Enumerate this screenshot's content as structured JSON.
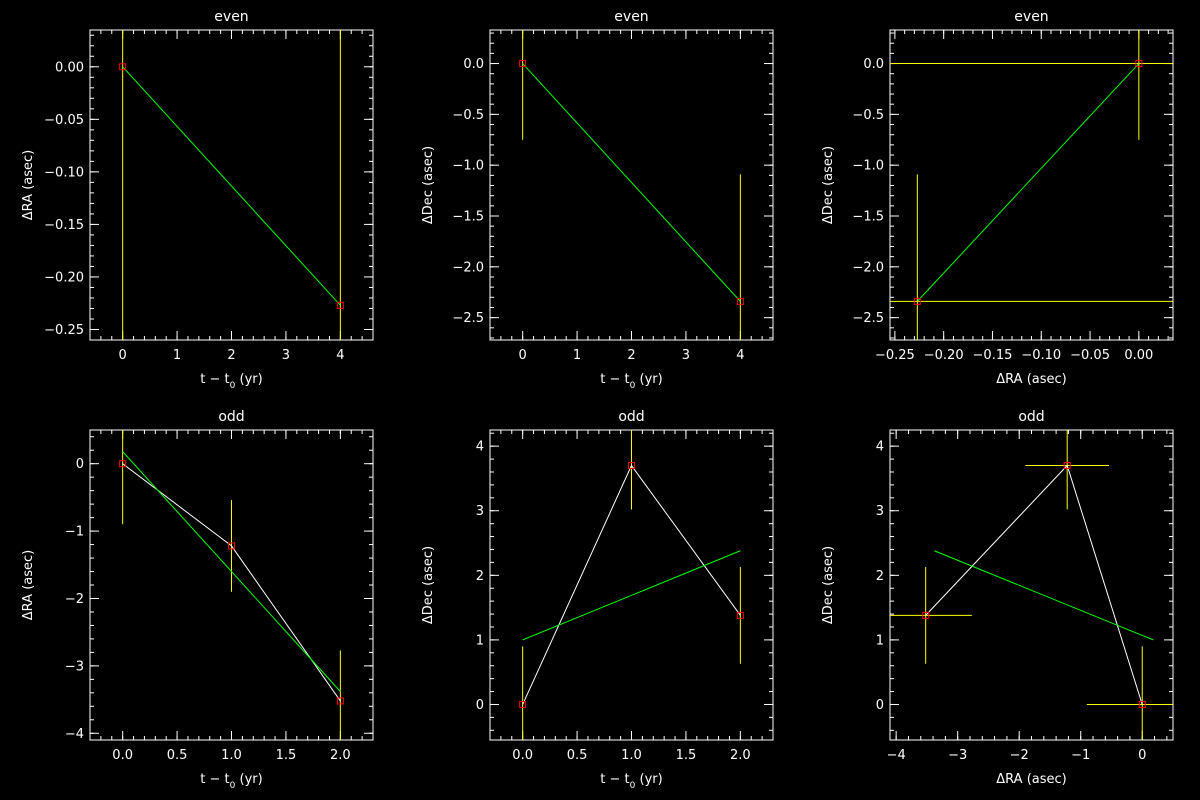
{
  "colors": {
    "background": "#000000",
    "axes": "#ffffff",
    "data_line": "#ffffff",
    "fit_line": "#00ff00",
    "error_bars": "#ffff00",
    "markers": "#ff0000"
  },
  "chart_data": [
    {
      "id": "even-ra-vs-t",
      "type": "scatter",
      "title": "even",
      "xlabel": "t − t",
      "xlabel_sub": "0",
      "xlabel_suffix": " (yr)",
      "ylabel": "ΔRA (asec)",
      "xlim": [
        -0.6,
        4.6
      ],
      "ylim": [
        -0.26,
        0.035
      ],
      "xticks": [
        0,
        1,
        2,
        3,
        4
      ],
      "xtick_labels": [
        "0",
        "1",
        "2",
        "3",
        "4"
      ],
      "xminor": 0.2,
      "yticks": [
        0.0,
        -0.05,
        -0.1,
        -0.15,
        -0.2,
        -0.25
      ],
      "ytick_labels": [
        "0.00",
        "−0.05",
        "−0.10",
        "−0.15",
        "−0.20",
        "−0.25"
      ],
      "yminor": 0.01,
      "points": [
        {
          "x": 0,
          "y": 0.0,
          "yerr": 1.0
        },
        {
          "x": 4,
          "y": -0.227,
          "yerr": 1.0
        }
      ],
      "data_line": false,
      "fit_line": {
        "x": [
          0,
          4
        ],
        "y": [
          0.0,
          -0.227
        ]
      }
    },
    {
      "id": "even-dec-vs-t",
      "type": "scatter",
      "title": "even",
      "xlabel": "t − t",
      "xlabel_sub": "0",
      "xlabel_suffix": " (yr)",
      "ylabel": "ΔDec (asec)",
      "xlim": [
        -0.6,
        4.6
      ],
      "ylim": [
        -2.72,
        0.33
      ],
      "xticks": [
        0,
        1,
        2,
        3,
        4
      ],
      "xtick_labels": [
        "0",
        "1",
        "2",
        "3",
        "4"
      ],
      "xminor": 0.2,
      "yticks": [
        0.0,
        -0.5,
        -1.0,
        -1.5,
        -2.0,
        -2.5
      ],
      "ytick_labels": [
        "0.0",
        "−0.5",
        "−1.0",
        "−1.5",
        "−2.0",
        "−2.5"
      ],
      "yminor": 0.1,
      "points": [
        {
          "x": 0,
          "y": 0.0,
          "yerr": 0.75
        },
        {
          "x": 4,
          "y": -2.34,
          "yerr": 1.25
        }
      ],
      "data_line": false,
      "fit_line": {
        "x": [
          0,
          4
        ],
        "y": [
          0.0,
          -2.34
        ]
      }
    },
    {
      "id": "even-dec-vs-ra",
      "type": "scatter",
      "title": "even",
      "xlabel": "ΔRA (asec)",
      "ylabel": "ΔDec (asec)",
      "xlim": [
        -0.255,
        0.035
      ],
      "ylim": [
        -2.72,
        0.33
      ],
      "xticks": [
        -0.25,
        -0.2,
        -0.15,
        -0.1,
        -0.05,
        0.0
      ],
      "xtick_labels": [
        "−0.25",
        "−0.20",
        "−0.15",
        "−0.10",
        "−0.05",
        "0.00"
      ],
      "xminor": 0.01,
      "yticks": [
        0.0,
        -0.5,
        -1.0,
        -1.5,
        -2.0,
        -2.5
      ],
      "ytick_labels": [
        "0.0",
        "−0.5",
        "−1.0",
        "−1.5",
        "−2.0",
        "−2.5"
      ],
      "yminor": 0.1,
      "points": [
        {
          "x": 0.0,
          "y": 0.0,
          "xerr": 1.0,
          "yerr": 0.75
        },
        {
          "x": -0.227,
          "y": -2.34,
          "xerr": 1.0,
          "yerr": 1.25
        }
      ],
      "data_line": false,
      "fit_line": {
        "x": [
          -0.227,
          0.0
        ],
        "y": [
          -2.34,
          0.0
        ]
      }
    },
    {
      "id": "odd-ra-vs-t",
      "type": "scatter",
      "title": "odd",
      "xlabel": "t − t",
      "xlabel_sub": "0",
      "xlabel_suffix": " (yr)",
      "ylabel": "ΔRA (asec)",
      "xlim": [
        -0.3,
        2.3
      ],
      "ylim": [
        -4.1,
        0.5
      ],
      "xticks": [
        0.0,
        0.5,
        1.0,
        1.5,
        2.0
      ],
      "xtick_labels": [
        "0.0",
        "0.5",
        "1.0",
        "1.5",
        "2.0"
      ],
      "xminor": 0.1,
      "yticks": [
        0,
        -1,
        -2,
        -3,
        -4
      ],
      "ytick_labels": [
        "0",
        "−1",
        "−2",
        "−3",
        "−4"
      ],
      "yminor": 0.2,
      "points": [
        {
          "x": 0,
          "y": 0.0,
          "yerr": 0.9
        },
        {
          "x": 1,
          "y": -1.22,
          "yerr": 0.68
        },
        {
          "x": 2,
          "y": -3.52,
          "yerr": 0.75
        }
      ],
      "data_line": true,
      "fit_line": {
        "x": [
          0,
          2
        ],
        "y": [
          0.18,
          -3.38
        ]
      }
    },
    {
      "id": "odd-dec-vs-t",
      "type": "scatter",
      "title": "odd",
      "xlabel": "t − t",
      "xlabel_sub": "0",
      "xlabel_suffix": " (yr)",
      "ylabel": "ΔDec (asec)",
      "xlim": [
        -0.3,
        2.3
      ],
      "ylim": [
        -0.55,
        4.25
      ],
      "xticks": [
        0.0,
        0.5,
        1.0,
        1.5,
        2.0
      ],
      "xtick_labels": [
        "0.0",
        "0.5",
        "1.0",
        "1.5",
        "2.0"
      ],
      "xminor": 0.1,
      "yticks": [
        0,
        1,
        2,
        3,
        4
      ],
      "ytick_labels": [
        "0",
        "1",
        "2",
        "3",
        "4"
      ],
      "yminor": 0.2,
      "points": [
        {
          "x": 0,
          "y": 0.0,
          "yerr": 0.9
        },
        {
          "x": 1,
          "y": 3.7,
          "yerr": 0.68
        },
        {
          "x": 2,
          "y": 1.38,
          "yerr": 0.75
        }
      ],
      "data_line": true,
      "fit_line": {
        "x": [
          0,
          2
        ],
        "y": [
          1.0,
          2.38
        ]
      }
    },
    {
      "id": "odd-dec-vs-ra",
      "type": "scatter",
      "title": "odd",
      "xlabel": "ΔRA (asec)",
      "ylabel": "ΔDec (asec)",
      "xlim": [
        -4.1,
        0.5
      ],
      "ylim": [
        -0.55,
        4.25
      ],
      "xticks": [
        -4,
        -3,
        -2,
        -1,
        0
      ],
      "xtick_labels": [
        "−4",
        "−3",
        "−2",
        "−1",
        "0"
      ],
      "xminor": 0.2,
      "yticks": [
        0,
        1,
        2,
        3,
        4
      ],
      "ytick_labels": [
        "0",
        "1",
        "2",
        "3",
        "4"
      ],
      "yminor": 0.2,
      "points": [
        {
          "x": -3.52,
          "y": 1.38,
          "xerr": 0.75,
          "yerr": 0.75
        },
        {
          "x": -1.22,
          "y": 3.7,
          "xerr": 0.68,
          "yerr": 0.68
        },
        {
          "x": 0.0,
          "y": 0.0,
          "xerr": 0.9,
          "yerr": 0.9
        }
      ],
      "data_line": true,
      "fit_line": {
        "x": [
          -3.38,
          0.18
        ],
        "y": [
          2.38,
          1.0
        ]
      }
    }
  ]
}
